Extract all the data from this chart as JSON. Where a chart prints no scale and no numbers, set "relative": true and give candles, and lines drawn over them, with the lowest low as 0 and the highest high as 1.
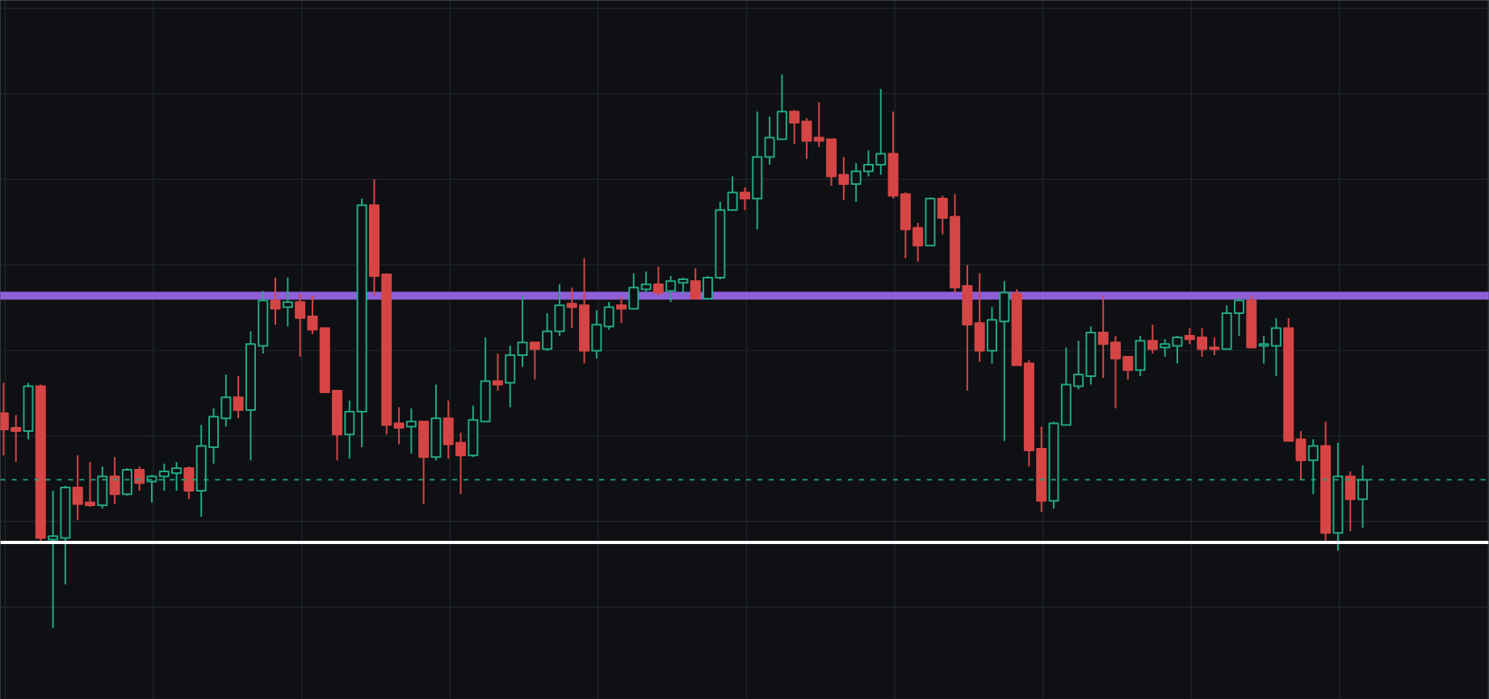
{
  "chart_data": {
    "type": "candlestick",
    "relative": true,
    "grid": true,
    "categories": [
      null,
      null,
      null,
      null,
      null,
      null,
      null,
      null,
      null,
      null,
      null,
      null,
      null,
      null,
      null,
      null,
      null,
      null,
      null,
      null,
      null,
      null,
      null,
      null,
      null,
      null,
      null,
      null,
      null,
      null,
      null,
      null,
      null,
      null,
      null,
      null,
      null,
      null,
      null,
      null,
      null,
      null,
      null,
      null,
      null,
      null,
      null,
      null,
      null,
      null,
      null,
      null,
      null,
      null,
      null,
      null,
      null,
      null,
      null,
      null,
      null,
      null,
      null,
      null,
      null,
      null,
      null,
      null,
      null,
      null,
      null,
      null,
      null,
      null,
      null,
      null,
      null,
      null,
      null,
      null,
      null,
      null,
      null,
      null,
      null,
      null,
      null,
      null,
      null,
      null,
      null,
      null,
      null,
      null,
      null,
      null,
      null,
      null,
      null,
      null,
      null,
      null,
      null,
      null,
      null,
      null,
      null,
      null,
      null,
      null,
      null
    ],
    "ohlc": [
      [
        0.388,
        0.443,
        0.312,
        0.359
      ],
      [
        0.362,
        0.385,
        0.3,
        0.356
      ],
      [
        0.356,
        0.443,
        0.341,
        0.437
      ],
      [
        0.437,
        0.44,
        0.157,
        0.163
      ],
      [
        0.16,
        0.248,
        0.0,
        0.166
      ],
      [
        0.163,
        0.257,
        0.079,
        0.254
      ],
      [
        0.254,
        0.312,
        0.195,
        0.224
      ],
      [
        0.227,
        0.3,
        0.219,
        0.222
      ],
      [
        0.222,
        0.292,
        0.216,
        0.274
      ],
      [
        0.274,
        0.309,
        0.224,
        0.242
      ],
      [
        0.242,
        0.289,
        0.239,
        0.286
      ],
      [
        0.286,
        0.292,
        0.248,
        0.262
      ],
      [
        0.265,
        0.277,
        0.227,
        0.274
      ],
      [
        0.274,
        0.297,
        0.248,
        0.283
      ],
      [
        0.28,
        0.3,
        0.248,
        0.289
      ],
      [
        0.289,
        0.292,
        0.233,
        0.248
      ],
      [
        0.248,
        0.367,
        0.201,
        0.329
      ],
      [
        0.327,
        0.397,
        0.297,
        0.382
      ],
      [
        0.379,
        0.458,
        0.364,
        0.417
      ],
      [
        0.417,
        0.455,
        0.379,
        0.394
      ],
      [
        0.394,
        0.536,
        0.303,
        0.513
      ],
      [
        0.51,
        0.609,
        0.496,
        0.592
      ],
      [
        0.592,
        0.633,
        0.548,
        0.577
      ],
      [
        0.58,
        0.633,
        0.545,
        0.589
      ],
      [
        0.589,
        0.604,
        0.49,
        0.56
      ],
      [
        0.563,
        0.601,
        0.531,
        0.539
      ],
      [
        0.542,
        0.542,
        0.426,
        0.426
      ],
      [
        0.429,
        0.429,
        0.303,
        0.35
      ],
      [
        0.35,
        0.411,
        0.306,
        0.391
      ],
      [
        0.391,
        0.776,
        0.327,
        0.764
      ],
      [
        0.764,
        0.811,
        0.601,
        0.636
      ],
      [
        0.639,
        0.641,
        0.35,
        0.367
      ],
      [
        0.37,
        0.399,
        0.332,
        0.362
      ],
      [
        0.364,
        0.397,
        0.315,
        0.373
      ],
      [
        0.373,
        0.373,
        0.224,
        0.309
      ],
      [
        0.309,
        0.44,
        0.303,
        0.379
      ],
      [
        0.379,
        0.411,
        0.306,
        0.332
      ],
      [
        0.335,
        0.353,
        0.242,
        0.312
      ],
      [
        0.312,
        0.402,
        0.309,
        0.376
      ],
      [
        0.373,
        0.525,
        0.373,
        0.446
      ],
      [
        0.446,
        0.496,
        0.429,
        0.44
      ],
      [
        0.443,
        0.51,
        0.399,
        0.493
      ],
      [
        0.493,
        0.601,
        0.472,
        0.516
      ],
      [
        0.516,
        0.516,
        0.449,
        0.504
      ],
      [
        0.504,
        0.569,
        0.501,
        0.536
      ],
      [
        0.536,
        0.621,
        0.528,
        0.583
      ],
      [
        0.586,
        0.615,
        0.542,
        0.58
      ],
      [
        0.583,
        0.668,
        0.478,
        0.501
      ],
      [
        0.501,
        0.574,
        0.487,
        0.548
      ],
      [
        0.545,
        0.589,
        0.539,
        0.58
      ],
      [
        0.583,
        0.598,
        0.551,
        0.577
      ],
      [
        0.577,
        0.641,
        0.577,
        0.615
      ],
      [
        0.612,
        0.644,
        0.606,
        0.621
      ],
      [
        0.621,
        0.653,
        0.601,
        0.606
      ],
      [
        0.609,
        0.636,
        0.589,
        0.627
      ],
      [
        0.624,
        0.633,
        0.604,
        0.63
      ],
      [
        0.627,
        0.65,
        0.595,
        0.595
      ],
      [
        0.595,
        0.636,
        0.595,
        0.633
      ],
      [
        0.633,
        0.77,
        0.63,
        0.755
      ],
      [
        0.755,
        0.816,
        0.755,
        0.787
      ],
      [
        0.787,
        0.796,
        0.755,
        0.776
      ],
      [
        0.776,
        0.933,
        0.72,
        0.851
      ],
      [
        0.851,
        0.924,
        0.837,
        0.886
      ],
      [
        0.883,
        1.0,
        0.883,
        0.933
      ],
      [
        0.933,
        0.936,
        0.875,
        0.913
      ],
      [
        0.915,
        0.921,
        0.848,
        0.88
      ],
      [
        0.886,
        0.95,
        0.869,
        0.88
      ],
      [
        0.883,
        0.883,
        0.799,
        0.816
      ],
      [
        0.819,
        0.851,
        0.773,
        0.802
      ],
      [
        0.802,
        0.84,
        0.77,
        0.825
      ],
      [
        0.825,
        0.863,
        0.816,
        0.837
      ],
      [
        0.837,
        0.974,
        0.819,
        0.857
      ],
      [
        0.857,
        0.933,
        0.776,
        0.781
      ],
      [
        0.784,
        0.787,
        0.668,
        0.72
      ],
      [
        0.723,
        0.732,
        0.662,
        0.691
      ],
      [
        0.691,
        0.778,
        0.691,
        0.776
      ],
      [
        0.776,
        0.781,
        0.711,
        0.741
      ],
      [
        0.743,
        0.784,
        0.606,
        0.615
      ],
      [
        0.618,
        0.656,
        0.429,
        0.548
      ],
      [
        0.551,
        0.641,
        0.481,
        0.501
      ],
      [
        0.501,
        0.58,
        0.478,
        0.557
      ],
      [
        0.554,
        0.627,
        0.338,
        0.606
      ],
      [
        0.604,
        0.612,
        0.475,
        0.475
      ],
      [
        0.478,
        0.484,
        0.292,
        0.321
      ],
      [
        0.324,
        0.364,
        0.21,
        0.23
      ],
      [
        0.23,
        0.373,
        0.216,
        0.37
      ],
      [
        0.367,
        0.507,
        0.367,
        0.44
      ],
      [
        0.437,
        0.519,
        0.431,
        0.458
      ],
      [
        0.455,
        0.545,
        0.44,
        0.534
      ],
      [
        0.534,
        0.601,
        0.452,
        0.513
      ],
      [
        0.516,
        0.528,
        0.397,
        0.487
      ],
      [
        0.49,
        0.49,
        0.449,
        0.466
      ],
      [
        0.466,
        0.528,
        0.455,
        0.519
      ],
      [
        0.519,
        0.548,
        0.496,
        0.504
      ],
      [
        0.507,
        0.522,
        0.49,
        0.513
      ],
      [
        0.51,
        0.528,
        0.478,
        0.525
      ],
      [
        0.528,
        0.542,
        0.513,
        0.522
      ],
      [
        0.525,
        0.542,
        0.49,
        0.504
      ],
      [
        0.507,
        0.525,
        0.493,
        0.504
      ],
      [
        0.504,
        0.583,
        0.504,
        0.569
      ],
      [
        0.569,
        0.598,
        0.528,
        0.592
      ],
      [
        0.592,
        0.601,
        0.507,
        0.507
      ],
      [
        0.51,
        0.528,
        0.478,
        0.513
      ],
      [
        0.51,
        0.56,
        0.455,
        0.542
      ],
      [
        0.542,
        0.56,
        0.338,
        0.338
      ],
      [
        0.341,
        0.356,
        0.268,
        0.303
      ],
      [
        0.303,
        0.341,
        0.242,
        0.329
      ],
      [
        0.329,
        0.373,
        0.157,
        0.172
      ],
      [
        0.172,
        0.335,
        0.14,
        0.274
      ],
      [
        0.274,
        0.283,
        0.175,
        0.233
      ],
      [
        0.233,
        0.294,
        0.181,
        0.268
      ]
    ],
    "colors": [
      "#d64545",
      "#d64545",
      "#22a883",
      "#d64545",
      "#22a883",
      "#22a883",
      "#d64545",
      "#d64545",
      "#22a883",
      "#d64545",
      "#22a883",
      "#d64545",
      "#22a883",
      "#22a883",
      "#22a883",
      "#d64545",
      "#22a883",
      "#22a883",
      "#22a883",
      "#d64545",
      "#22a883",
      "#22a883",
      "#d64545",
      "#22a883",
      "#d64545",
      "#d64545",
      "#d64545",
      "#d64545",
      "#22a883",
      "#22a883",
      "#d64545",
      "#d64545",
      "#d64545",
      "#22a883",
      "#d64545",
      "#22a883",
      "#d64545",
      "#d64545",
      "#22a883",
      "#22a883",
      "#d64545",
      "#22a883",
      "#22a883",
      "#d64545",
      "#22a883",
      "#22a883",
      "#d64545",
      "#d64545",
      "#22a883",
      "#22a883",
      "#d64545",
      "#22a883",
      "#22a883",
      "#d64545",
      "#22a883",
      "#22a883",
      "#d64545",
      "#22a883",
      "#22a883",
      "#22a883",
      "#d64545",
      "#22a883",
      "#22a883",
      "#22a883",
      "#d64545",
      "#d64545",
      "#d64545",
      "#d64545",
      "#d64545",
      "#22a883",
      "#22a883",
      "#22a883",
      "#d64545",
      "#d64545",
      "#d64545",
      "#22a883",
      "#d64545",
      "#d64545",
      "#d64545",
      "#d64545",
      "#22a883",
      "#22a883",
      "#d64545",
      "#d64545",
      "#d64545",
      "#22a883",
      "#22a883",
      "#22a883",
      "#22a883",
      "#d64545",
      "#d64545",
      "#d64545",
      "#22a883",
      "#d64545",
      "#22a883",
      "#22a883",
      "#d64545",
      "#d64545",
      "#d64545",
      "#22a883",
      "#22a883",
      "#d64545",
      "#22a883",
      "#22a883",
      "#d64545",
      "#d64545",
      "#22a883",
      "#d64545",
      "#22a883",
      "#d64545",
      "#22a883"
    ],
    "ref_lines": [
      {
        "axis": "y",
        "value": 0.155,
        "color": "#ffffff",
        "line_style": "solid"
      },
      {
        "axis": "y",
        "value": 0.268,
        "color": "#22a883",
        "line_style": "dashed"
      }
    ],
    "bands": [
      {
        "axis": "y",
        "from": 0.595,
        "to": 0.606,
        "color": "#8e5fd6"
      }
    ]
  }
}
